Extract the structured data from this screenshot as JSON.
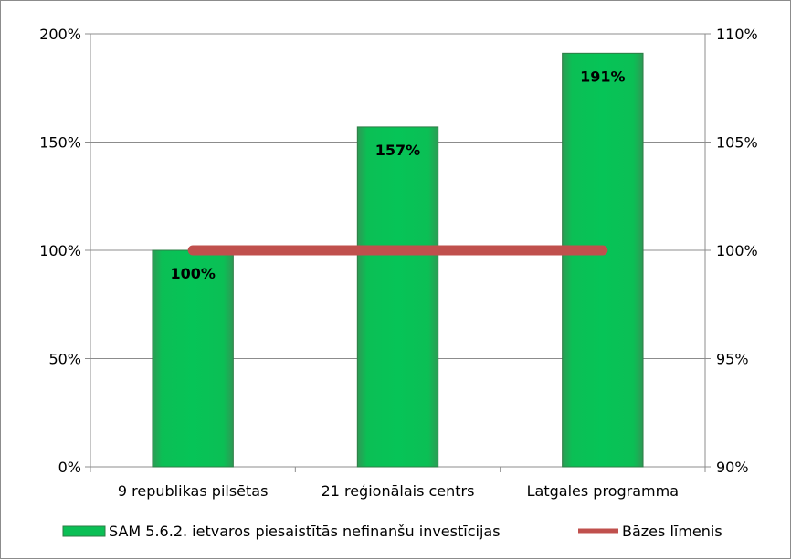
{
  "chart_data": {
    "type": "bar",
    "categories": [
      "9 republikas pilsētas",
      "21 reģionālais centrs",
      "Latgales programma"
    ],
    "series": [
      {
        "name": "SAM 5.6.2. ietvaros piesaistītās nefinanšu investīcijas",
        "values": [
          100,
          157,
          191
        ],
        "data_labels": [
          "100%",
          "157%",
          "191%"
        ],
        "axis": "left",
        "color": "#0bbf55"
      },
      {
        "name": "Bāzes līmenis",
        "type": "line",
        "values": [
          100,
          100,
          100
        ],
        "axis": "right",
        "color": "#c0504d"
      }
    ],
    "y_left": {
      "ylim": [
        0,
        200
      ],
      "ticks": [
        0,
        50,
        100,
        150,
        200
      ],
      "tick_labels": [
        "0%",
        "50%",
        "100%",
        "150%",
        "200%"
      ]
    },
    "y_right": {
      "ylim": [
        90,
        110
      ],
      "ticks": [
        90,
        95,
        100,
        105,
        110
      ],
      "tick_labels": [
        "90%",
        "95%",
        "100%",
        "105%",
        "110%"
      ]
    },
    "grid": true,
    "legend_placement": "bottom"
  }
}
